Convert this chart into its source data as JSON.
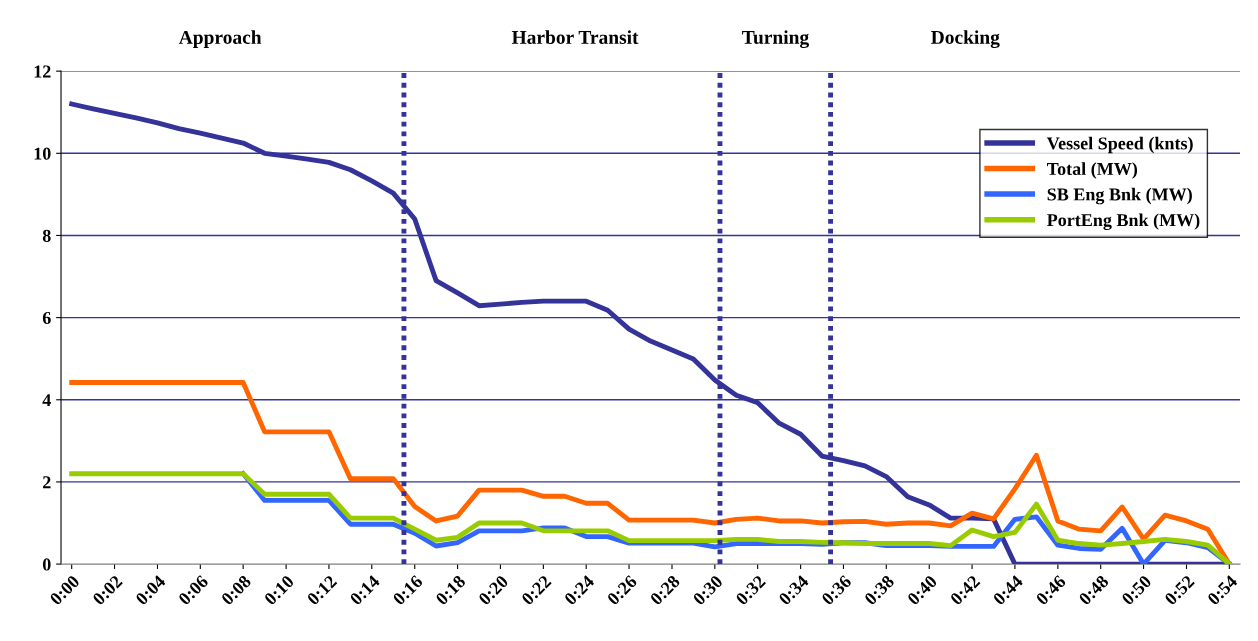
{
  "chart_data": {
    "type": "line",
    "annotations": [
      "Approach",
      "Harbor Transit",
      "Turning",
      "Docking"
    ],
    "x": [
      0,
      0.0167,
      0.0333,
      0.05,
      0.0667,
      0.0833,
      0.1,
      0.1167,
      0.1333,
      0.15,
      0.1667,
      0.1833,
      0.2,
      0.2167,
      0.2333,
      0.25,
      0.2667,
      0.2833,
      0.3,
      0.3167,
      0.3333,
      0.35,
      0.3667,
      0.3833,
      0.4,
      0.4167,
      0.4333,
      0.45,
      0.4667,
      0.4833,
      0.5,
      0.5167,
      0.5333,
      0.55,
      0.5667,
      0.5833,
      0.6,
      0.6167,
      0.6333,
      0.65,
      0.6667,
      0.6833,
      0.7,
      0.7167,
      0.7333,
      0.75,
      0.7667,
      0.7833,
      0.8,
      0.8167,
      0.8333,
      0.85,
      0.8667,
      0.8833,
      0.9
    ],
    "series": [
      {
        "name": "Vessel Speed (knts)",
        "color": "#333399",
        "values": [
          11.2,
          11.08,
          10.97,
          10.86,
          10.74,
          10.6,
          10.49,
          10.37,
          10.25,
          10.0,
          9.93,
          9.86,
          9.78,
          9.6,
          9.33,
          9.03,
          8.4,
          6.9,
          6.6,
          6.29,
          6.33,
          6.37,
          6.4,
          6.4,
          6.4,
          6.18,
          5.72,
          5.43,
          5.21,
          4.99,
          4.48,
          4.11,
          3.93,
          3.43,
          3.16,
          2.63,
          2.52,
          2.39,
          2.13,
          1.64,
          1.44,
          1.12,
          1.12,
          1.1,
          0,
          0,
          0,
          0,
          0,
          0,
          0,
          0,
          0,
          0,
          0
        ]
      },
      {
        "name": "Total (MW)",
        "color": "#ff6600",
        "values": [
          4.42,
          4.42,
          4.42,
          4.42,
          4.42,
          4.42,
          4.42,
          4.42,
          4.42,
          3.22,
          3.22,
          3.22,
          3.22,
          2.08,
          2.08,
          2.08,
          1.4,
          1.05,
          1.17,
          1.8,
          1.8,
          1.8,
          1.65,
          1.65,
          1.48,
          1.48,
          1.07,
          1.07,
          1.07,
          1.07,
          1.0,
          1.09,
          1.12,
          1.05,
          1.05,
          1.0,
          1.03,
          1.04,
          0.97,
          1.0,
          1.0,
          0.93,
          1.24,
          1.1,
          1.83,
          2.65,
          1.05,
          0.85,
          0.81,
          1.39,
          0.61,
          1.19,
          1.05,
          0.85,
          0
        ]
      },
      {
        "name": "SB Eng Bnk (MW)",
        "color": "#3366ff",
        "values": [
          null,
          null,
          null,
          null,
          null,
          null,
          null,
          null,
          2.2,
          1.55,
          1.55,
          1.55,
          1.55,
          0.97,
          0.97,
          0.97,
          0.75,
          0.44,
          0.52,
          0.81,
          0.81,
          0.81,
          0.88,
          0.88,
          0.67,
          0.67,
          0.51,
          0.51,
          0.51,
          0.51,
          0.42,
          0.5,
          0.5,
          0.5,
          0.5,
          0.48,
          0.52,
          0.52,
          0.45,
          0.45,
          0.45,
          0.43,
          0.43,
          0.43,
          1.09,
          1.15,
          0.46,
          0.38,
          0.36,
          0.87,
          0,
          0.58,
          0.52,
          0.4,
          0
        ]
      },
      {
        "name": "PortEng Bnk (MW)",
        "color": "#99cc00",
        "values": [
          2.2,
          2.2,
          2.2,
          2.2,
          2.2,
          2.2,
          2.2,
          2.2,
          2.2,
          1.7,
          1.7,
          1.7,
          1.7,
          1.12,
          1.12,
          1.12,
          0.85,
          0.58,
          0.65,
          1.0,
          1.0,
          1.0,
          0.81,
          0.81,
          0.81,
          0.81,
          0.57,
          0.57,
          0.57,
          0.57,
          0.57,
          0.6,
          0.6,
          0.55,
          0.55,
          0.53,
          0.52,
          0.5,
          0.5,
          0.5,
          0.5,
          0.45,
          0.83,
          0.67,
          0.77,
          1.46,
          0.58,
          0.5,
          0.46,
          0.5,
          0.55,
          0.6,
          0.55,
          0.46,
          0
        ]
      }
    ],
    "xlim": [
      -0.0083,
      0.9083
    ],
    "xticks": [
      {
        "value": 0,
        "label": "0:00"
      },
      {
        "value": 0.0333,
        "label": "0:02"
      },
      {
        "value": 0.0667,
        "label": "0:04"
      },
      {
        "value": 0.1,
        "label": "0:06"
      },
      {
        "value": 0.1333,
        "label": "0:08"
      },
      {
        "value": 0.1667,
        "label": "0:10"
      },
      {
        "value": 0.2,
        "label": "0:12"
      },
      {
        "value": 0.2333,
        "label": "0:14"
      },
      {
        "value": 0.2667,
        "label": "0:16"
      },
      {
        "value": 0.3,
        "label": "0:18"
      },
      {
        "value": 0.3333,
        "label": "0:20"
      },
      {
        "value": 0.3667,
        "label": "0:22"
      },
      {
        "value": 0.4,
        "label": "0:24"
      },
      {
        "value": 0.4333,
        "label": "0:26"
      },
      {
        "value": 0.4667,
        "label": "0:28"
      },
      {
        "value": 0.5,
        "label": "0:30"
      },
      {
        "value": 0.5333,
        "label": "0:32"
      },
      {
        "value": 0.5667,
        "label": "0:34"
      },
      {
        "value": 0.6,
        "label": "0:36"
      },
      {
        "value": 0.6333,
        "label": "0:38"
      },
      {
        "value": 0.6667,
        "label": "0:40"
      },
      {
        "value": 0.7,
        "label": "0:42"
      },
      {
        "value": 0.7333,
        "label": "0:44"
      },
      {
        "value": 0.7667,
        "label": "0:46"
      },
      {
        "value": 0.8,
        "label": "0:48"
      },
      {
        "value": 0.8333,
        "label": "0:50"
      },
      {
        "value": 0.8667,
        "label": "0:52"
      },
      {
        "value": 0.9,
        "label": "0:54"
      }
    ],
    "ylim": [
      0,
      12
    ],
    "yticks": [
      0,
      2,
      4,
      6,
      8,
      10,
      12
    ],
    "ref_lines": [
      {
        "axis": "x",
        "value": 0.2583,
        "color": "#333399",
        "line_style": "dotted"
      },
      {
        "axis": "x",
        "value": 0.504,
        "color": "#333399",
        "line_style": "dotted"
      },
      {
        "axis": "x",
        "value": 0.59,
        "color": "#333399",
        "line_style": "dotted"
      }
    ],
    "grid": "y",
    "legend": "top right",
    "marker": "none",
    "line_style": "solid"
  }
}
